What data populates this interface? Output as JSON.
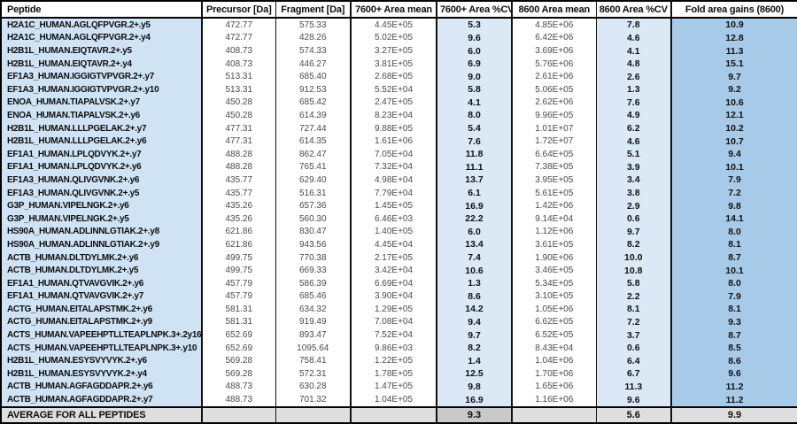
{
  "table": {
    "columns": [
      {
        "key": "peptide",
        "label": "Peptide"
      },
      {
        "key": "precursor",
        "label": "Precursor [Da]"
      },
      {
        "key": "fragment",
        "label": "Fragment [Da]"
      },
      {
        "key": "area7600",
        "label": "7600+ Area mean"
      },
      {
        "key": "cv7600",
        "label": "7600+ Area %CV"
      },
      {
        "key": "area8600",
        "label": "8600 Area mean"
      },
      {
        "key": "cv8600",
        "label": "8600 Area %CV"
      },
      {
        "key": "fold8600",
        "label": "Fold area gains (8600)"
      }
    ],
    "rows": [
      [
        "H2A1C_HUMAN.AGLQFPVGR.2+.y5",
        "472.77",
        "575.33",
        "4.45E+05",
        "5.3",
        "4.85E+06",
        "7.8",
        "10.9"
      ],
      [
        "H2A1C_HUMAN.AGLQFPVGR.2+.y4",
        "472.77",
        "428.26",
        "5.02E+05",
        "9.6",
        "6.42E+06",
        "4.6",
        "12.8"
      ],
      [
        "H2B1L_HUMAN.EIQTAVR.2+.y5",
        "408.73",
        "574.33",
        "3.27E+05",
        "6.0",
        "3.69E+06",
        "4.1",
        "11.3"
      ],
      [
        "H2B1L_HUMAN.EIQTAVR.2+.y4",
        "408.73",
        "446.27",
        "3.81E+05",
        "6.9",
        "5.76E+06",
        "4.8",
        "15.1"
      ],
      [
        "EF1A3_HUMAN.IGGIGTVPVGR.2+.y7",
        "513.31",
        "685.40",
        "2.68E+05",
        "9.0",
        "2.61E+06",
        "2.6",
        "9.7"
      ],
      [
        "EF1A3_HUMAN.IGGIGTVPVGR.2+.y10",
        "513.31",
        "912.53",
        "5.52E+04",
        "5.8",
        "5.06E+05",
        "1.3",
        "9.2"
      ],
      [
        "ENOA_HUMAN.TIAPALVSK.2+.y7",
        "450.28",
        "685.42",
        "2.47E+05",
        "4.1",
        "2.62E+06",
        "7.6",
        "10.6"
      ],
      [
        "ENOA_HUMAN.TIAPALVSK.2+.y6",
        "450.28",
        "614.39",
        "8.23E+04",
        "8.0",
        "9.96E+05",
        "4.9",
        "12.1"
      ],
      [
        "H2B1L_HUMAN.LLLPGELAK.2+.y7",
        "477.31",
        "727.44",
        "9.88E+05",
        "5.4",
        "1.01E+07",
        "6.2",
        "10.2"
      ],
      [
        "H2B1L_HUMAN.LLLPGELAK.2+.y6",
        "477.31",
        "614.35",
        "1.61E+06",
        "7.6",
        "1.72E+07",
        "4.6",
        "10.7"
      ],
      [
        "EF1A1_HUMAN.LPLQDVYK.2+.y7",
        "488.28",
        "862.47",
        "7.05E+04",
        "11.8",
        "6.64E+05",
        "5.1",
        "9.4"
      ],
      [
        "EF1A1_HUMAN.LPLQDVYK.2+.y6",
        "488.28",
        "765.41",
        "7.32E+04",
        "11.1",
        "7.38E+05",
        "3.9",
        "10.1"
      ],
      [
        "EF1A3_HUMAN.QLIVGVNK.2+.y6",
        "435.77",
        "629.40",
        "4.98E+04",
        "13.7",
        "3.95E+05",
        "3.4",
        "7.9"
      ],
      [
        "EF1A3_HUMAN.QLIVGVNK.2+.y5",
        "435.77",
        "516.31",
        "7.79E+04",
        "6.1",
        "5.61E+05",
        "3.8",
        "7.2"
      ],
      [
        "G3P_HUMAN.VIPELNGK.2+.y6",
        "435.26",
        "657.36",
        "1.45E+05",
        "16.9",
        "1.42E+06",
        "2.9",
        "9.8"
      ],
      [
        "G3P_HUMAN.VIPELNGK.2+.y5",
        "435.26",
        "560.30",
        "6.46E+03",
        "22.2",
        "9.14E+04",
        "0.6",
        "14.1"
      ],
      [
        "HS90A_HUMAN.ADLINNLGTIAK.2+.y8",
        "621.86",
        "830.47",
        "1.40E+05",
        "6.0",
        "1.12E+06",
        "9.7",
        "8.0"
      ],
      [
        "HS90A_HUMAN.ADLINNLGTIAK.2+.y9",
        "621.86",
        "943.56",
        "4.45E+04",
        "13.4",
        "3.61E+05",
        "8.2",
        "8.1"
      ],
      [
        "ACTB_HUMAN.DLTDYLMK.2+.y6",
        "499.75",
        "770.38",
        "2.17E+05",
        "7.4",
        "1.90E+06",
        "10.0",
        "8.7"
      ],
      [
        "ACTB_HUMAN.DLTDYLMK.2+.y5",
        "499.75",
        "669.33",
        "3.42E+04",
        "10.6",
        "3.46E+05",
        "10.8",
        "10.1"
      ],
      [
        "EF1A1_HUMAN.QTVAVGVIK.2+.y6",
        "457.79",
        "586.39",
        "6.69E+04",
        "1.3",
        "5.34E+05",
        "5.8",
        "8.0"
      ],
      [
        "EF1A1_HUMAN.QTVAVGVIK.2+.y7",
        "457.79",
        "685.46",
        "3.90E+04",
        "8.6",
        "3.10E+05",
        "2.2",
        "7.9"
      ],
      [
        "ACTG_HUMAN.EITALAPSTMK.2+.y6",
        "581.31",
        "634.32",
        "1.29E+05",
        "14.2",
        "1.05E+06",
        "8.1",
        "8.1"
      ],
      [
        "ACTG_HUMAN.EITALAPSTMK.2+.y9",
        "581.31",
        "919.49",
        "7.08E+04",
        "9.4",
        "6.62E+05",
        "7.2",
        "9.3"
      ],
      [
        "ACTS_HUMAN.VAPEEHPTLLTEAPLNPK.3+.2y16",
        "652.69",
        "893.47",
        "7.52E+04",
        "9.7",
        "6.52E+05",
        "3.7",
        "8.7"
      ],
      [
        "ACTS_HUMAN.VAPEEHPTLLTEAPLNPK.3+.y10",
        "652.69",
        "1095.64",
        "9.86E+03",
        "8.2",
        "8.43E+04",
        "0.6",
        "8.5"
      ],
      [
        "H2B1L_HUMAN.ESYSVYVYK.2+.y6",
        "569.28",
        "758.41",
        "1.22E+05",
        "1.4",
        "1.04E+06",
        "6.4",
        "8.6"
      ],
      [
        "H2B1L_HUMAN.ESYSVYVYK.2+.y4",
        "569.28",
        "572.31",
        "1.78E+05",
        "12.5",
        "1.70E+06",
        "6.7",
        "9.6"
      ],
      [
        "ACTB_HUMAN.AGFAGDDAPR.2+.y6",
        "488.73",
        "630.28",
        "1.47E+05",
        "9.8",
        "1.65E+06",
        "11.3",
        "11.2"
      ],
      [
        "ACTB_HUMAN.AGFAGDDAPR.2+.y7",
        "488.73",
        "701.32",
        "1.04E+05",
        "16.9",
        "1.16E+06",
        "9.6",
        "11.2"
      ]
    ],
    "footer_row": [
      "AVERAGE FOR ALL PEPTIDES",
      "",
      "",
      "",
      "9.3",
      "",
      "5.6",
      "9.9"
    ]
  },
  "colors": {
    "peptide_column_bg": "#cfe3f5",
    "cv_column_bg": "#dbe9f6",
    "fold_column_bg": "#a7cae9",
    "footer_bg": "#dfdfdf",
    "footer_cv7600_bg": "#c9c9c9",
    "border": "#000000"
  }
}
